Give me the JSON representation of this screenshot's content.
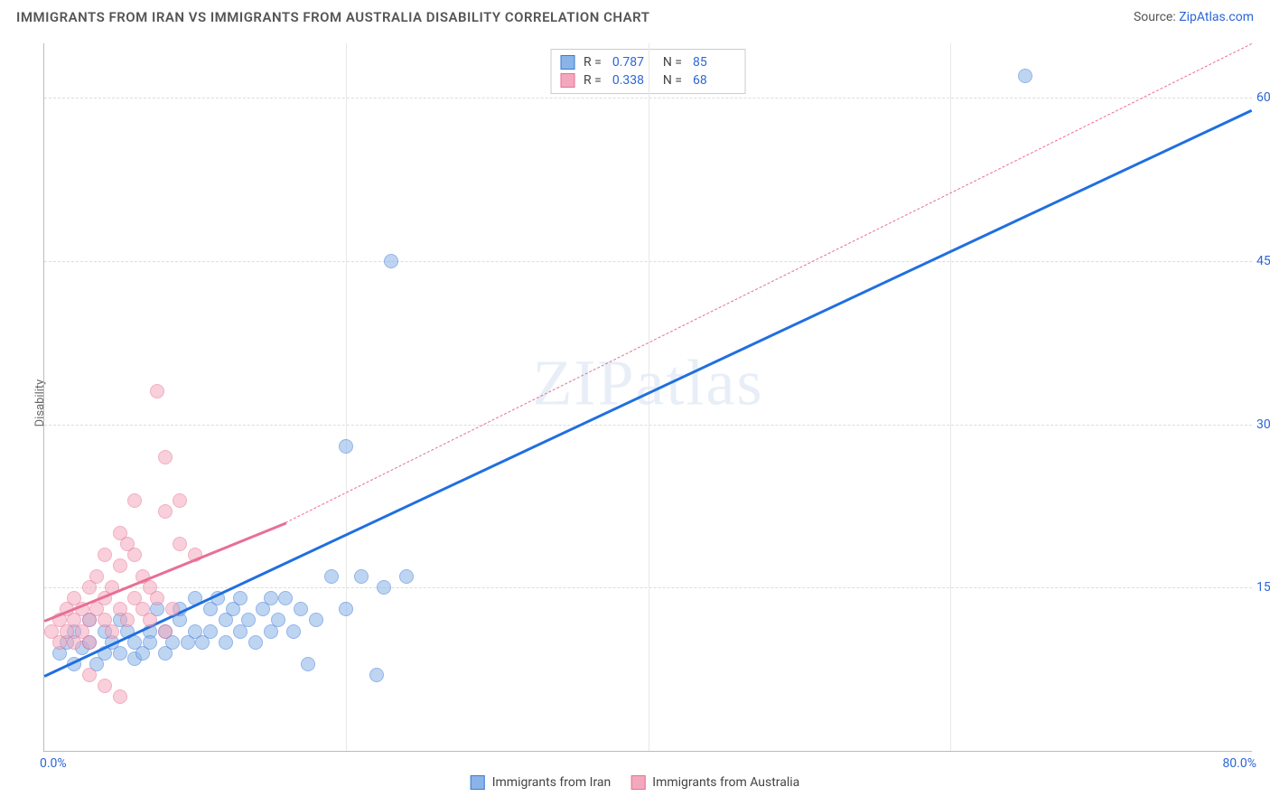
{
  "header": {
    "title": "IMMIGRANTS FROM IRAN VS IMMIGRANTS FROM AUSTRALIA DISABILITY CORRELATION CHART",
    "source_label": "Source:",
    "source_name": "ZipAtlas.com"
  },
  "watermark": "ZIPatlas",
  "chart": {
    "type": "scatter",
    "ylabel": "Disability",
    "x_min": 0,
    "x_max": 80,
    "y_min": 0,
    "y_max": 65,
    "x_ticks": [
      {
        "v": 0,
        "label": "0.0%"
      },
      {
        "v": 80,
        "label": "80.0%"
      }
    ],
    "y_ticks": [
      {
        "v": 15,
        "label": "15.0%"
      },
      {
        "v": 30,
        "label": "30.0%"
      },
      {
        "v": 45,
        "label": "45.0%"
      },
      {
        "v": 60,
        "label": "60.0%"
      }
    ],
    "v_grid": [
      20,
      40,
      60
    ],
    "grid_color": "#dddddd",
    "background_color": "#ffffff",
    "series": [
      {
        "key": "iran",
        "color_fill": "#8ab4e8",
        "color_stroke": "#3a78d6",
        "trend_color": "#1f6fe0",
        "trend_style": "solid",
        "trend": {
          "x1": 0,
          "y1": 7,
          "x2": 80,
          "y2": 59
        },
        "trend_dashed_ext": null,
        "r": 0.787,
        "n": 85,
        "points": [
          [
            1,
            9
          ],
          [
            1.5,
            10
          ],
          [
            2,
            11
          ],
          [
            2,
            8
          ],
          [
            2.5,
            9.5
          ],
          [
            3,
            10
          ],
          [
            3,
            12
          ],
          [
            3.5,
            8
          ],
          [
            4,
            11
          ],
          [
            4,
            9
          ],
          [
            4.5,
            10
          ],
          [
            5,
            12
          ],
          [
            5,
            9
          ],
          [
            5.5,
            11
          ],
          [
            6,
            10
          ],
          [
            6,
            8.5
          ],
          [
            6.5,
            9
          ],
          [
            7,
            11
          ],
          [
            7,
            10
          ],
          [
            7.5,
            13
          ],
          [
            8,
            11
          ],
          [
            8,
            9
          ],
          [
            8.5,
            10
          ],
          [
            9,
            12
          ],
          [
            9,
            13
          ],
          [
            9.5,
            10
          ],
          [
            10,
            11
          ],
          [
            10,
            14
          ],
          [
            10.5,
            10
          ],
          [
            11,
            13
          ],
          [
            11,
            11
          ],
          [
            11.5,
            14
          ],
          [
            12,
            12
          ],
          [
            12,
            10
          ],
          [
            12.5,
            13
          ],
          [
            13,
            11
          ],
          [
            13,
            14
          ],
          [
            13.5,
            12
          ],
          [
            14,
            10
          ],
          [
            14.5,
            13
          ],
          [
            15,
            14
          ],
          [
            15,
            11
          ],
          [
            15.5,
            12
          ],
          [
            16,
            14
          ],
          [
            16.5,
            11
          ],
          [
            17,
            13
          ],
          [
            17.5,
            8
          ],
          [
            18,
            12
          ],
          [
            19,
            16
          ],
          [
            20,
            13
          ],
          [
            20,
            28
          ],
          [
            21,
            16
          ],
          [
            22,
            7
          ],
          [
            22.5,
            15
          ],
          [
            23,
            45
          ],
          [
            24,
            16
          ],
          [
            65,
            62
          ]
        ]
      },
      {
        "key": "australia",
        "color_fill": "#f4a8bd",
        "color_stroke": "#e86f95",
        "trend_color": "#e86f95",
        "trend_style": "solid",
        "trend": {
          "x1": 0,
          "y1": 12,
          "x2": 16,
          "y2": 21
        },
        "trend_dashed_ext": {
          "x1": 16,
          "y1": 21,
          "x2": 80,
          "y2": 65
        },
        "r": 0.338,
        "n": 68,
        "points": [
          [
            0.5,
            11
          ],
          [
            1,
            12
          ],
          [
            1,
            10
          ],
          [
            1.5,
            13
          ],
          [
            1.5,
            11
          ],
          [
            2,
            12
          ],
          [
            2,
            14
          ],
          [
            2,
            10
          ],
          [
            2.5,
            13
          ],
          [
            2.5,
            11
          ],
          [
            3,
            12
          ],
          [
            3,
            15
          ],
          [
            3,
            10
          ],
          [
            3.5,
            13
          ],
          [
            3.5,
            16
          ],
          [
            4,
            12
          ],
          [
            4,
            14
          ],
          [
            4,
            18
          ],
          [
            4.5,
            11
          ],
          [
            4.5,
            15
          ],
          [
            5,
            13
          ],
          [
            5,
            17
          ],
          [
            5,
            20
          ],
          [
            5.5,
            12
          ],
          [
            5.5,
            19
          ],
          [
            6,
            14
          ],
          [
            6,
            18
          ],
          [
            6,
            23
          ],
          [
            6.5,
            13
          ],
          [
            6.5,
            16
          ],
          [
            7,
            15
          ],
          [
            7,
            12
          ],
          [
            7.5,
            14
          ],
          [
            7.5,
            33
          ],
          [
            8,
            11
          ],
          [
            8,
            22
          ],
          [
            8,
            27
          ],
          [
            8.5,
            13
          ],
          [
            9,
            19
          ],
          [
            9,
            23
          ],
          [
            10,
            18
          ],
          [
            4,
            6
          ],
          [
            5,
            5
          ],
          [
            3,
            7
          ]
        ]
      }
    ],
    "legend_bottom": [
      {
        "label": "Immigrants from Iran",
        "fill": "#8ab4e8",
        "stroke": "#3a78d6"
      },
      {
        "label": "Immigrants from Australia",
        "fill": "#f4a8bd",
        "stroke": "#e86f95"
      }
    ]
  }
}
